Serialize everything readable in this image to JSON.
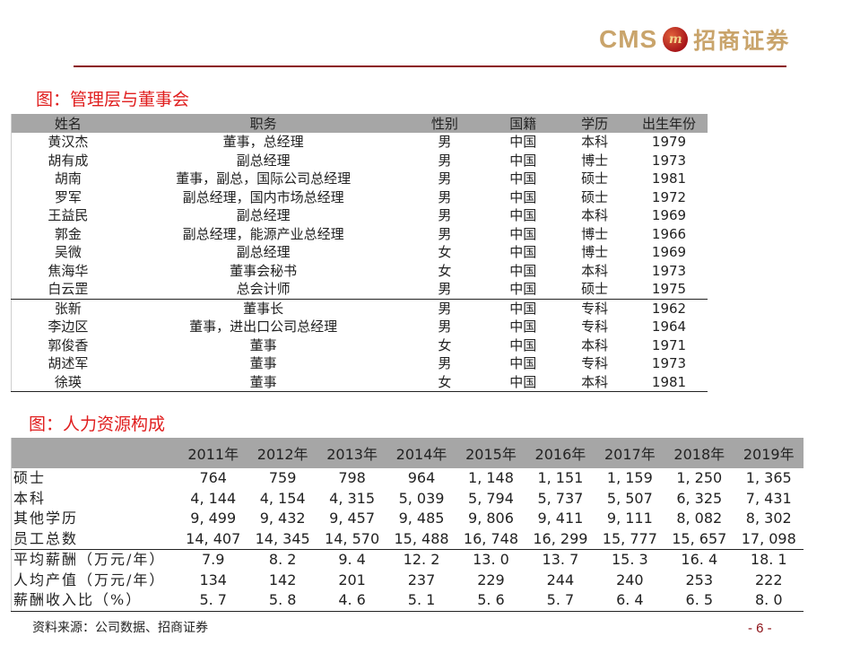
{
  "header": {
    "logo_en": "CMS",
    "logo_badge": "m",
    "logo_cn": "招商证券",
    "rule_color": "#8b0f15",
    "brand_color": "#c9a46b"
  },
  "figure1": {
    "title": "图：管理层与董事会",
    "columns": [
      "姓名",
      "职务",
      "性别",
      "国籍",
      "学历",
      "出生年份"
    ],
    "rows": [
      [
        "黄汉杰",
        "董事，总经理",
        "男",
        "中国",
        "本科",
        "1979"
      ],
      [
        "胡有成",
        "副总经理",
        "男",
        "中国",
        "博士",
        "1973"
      ],
      [
        "胡南",
        "董事，副总，国际公司总经理",
        "男",
        "中国",
        "硕士",
        "1981"
      ],
      [
        "罗军",
        "副总经理，国内市场总经理",
        "男",
        "中国",
        "硕士",
        "1972"
      ],
      [
        "王益民",
        "副总经理",
        "男",
        "中国",
        "本科",
        "1969"
      ],
      [
        "郭金",
        "副总经理，能源产业总经理",
        "男",
        "中国",
        "博士",
        "1966"
      ],
      [
        "吴微",
        "副总经理",
        "女",
        "中国",
        "博士",
        "1969"
      ],
      [
        "焦海华",
        "董事会秘书",
        "女",
        "中国",
        "本科",
        "1973"
      ],
      [
        "白云罡",
        "总会计师",
        "男",
        "中国",
        "硕士",
        "1975"
      ],
      [
        "张新",
        "董事长",
        "男",
        "中国",
        "专科",
        "1962"
      ],
      [
        "李边区",
        "董事，进出口公司总经理",
        "男",
        "中国",
        "专科",
        "1964"
      ],
      [
        "郭俊香",
        "董事",
        "女",
        "中国",
        "本科",
        "1971"
      ],
      [
        "胡述军",
        "董事",
        "男",
        "中国",
        "专科",
        "1973"
      ],
      [
        "徐瑛",
        "董事",
        "女",
        "中国",
        "本科",
        "1981"
      ]
    ]
  },
  "figure2": {
    "title": "图：人力资源构成",
    "columns": [
      "",
      "2011年",
      "2012年",
      "2013年",
      "2014年",
      "2015年",
      "2016年",
      "2017年",
      "2018年",
      "2019年"
    ],
    "rows": [
      [
        "硕士",
        "764",
        "759",
        "798",
        "964",
        "1, 148",
        "1, 151",
        "1, 159",
        "1, 250",
        "1, 365"
      ],
      [
        "本科",
        "4, 144",
        "4, 154",
        "4, 315",
        "5, 039",
        "5, 794",
        "5, 737",
        "5, 507",
        "6, 325",
        "7, 431"
      ],
      [
        "其他学历",
        "9, 499",
        "9, 432",
        "9, 457",
        "9, 485",
        "9, 806",
        "9, 411",
        "9, 111",
        "8, 082",
        "8, 302"
      ],
      [
        "员工总数",
        "14, 407",
        "14, 345",
        "14, 570",
        "15, 488",
        "16, 748",
        "16, 299",
        "15, 777",
        "15, 657",
        "17, 098"
      ],
      [
        "平均薪酬（万元/年）",
        "7.9",
        "8. 2",
        "9. 4",
        "12. 2",
        "13. 0",
        "13. 7",
        "15. 3",
        "16. 4",
        "18. 1"
      ],
      [
        "人均产值（万元/年）",
        "134",
        "142",
        "201",
        "237",
        "229",
        "244",
        "240",
        "253",
        "222"
      ],
      [
        "薪酬收入比（%）",
        "5. 7",
        "5. 8",
        "4. 6",
        "5. 1",
        "5. 6",
        "5. 7",
        "6. 4",
        "6. 5",
        "8. 0"
      ]
    ]
  },
  "footer": {
    "source": "资料来源：公司数据、招商证券",
    "page": "- 6 -"
  }
}
